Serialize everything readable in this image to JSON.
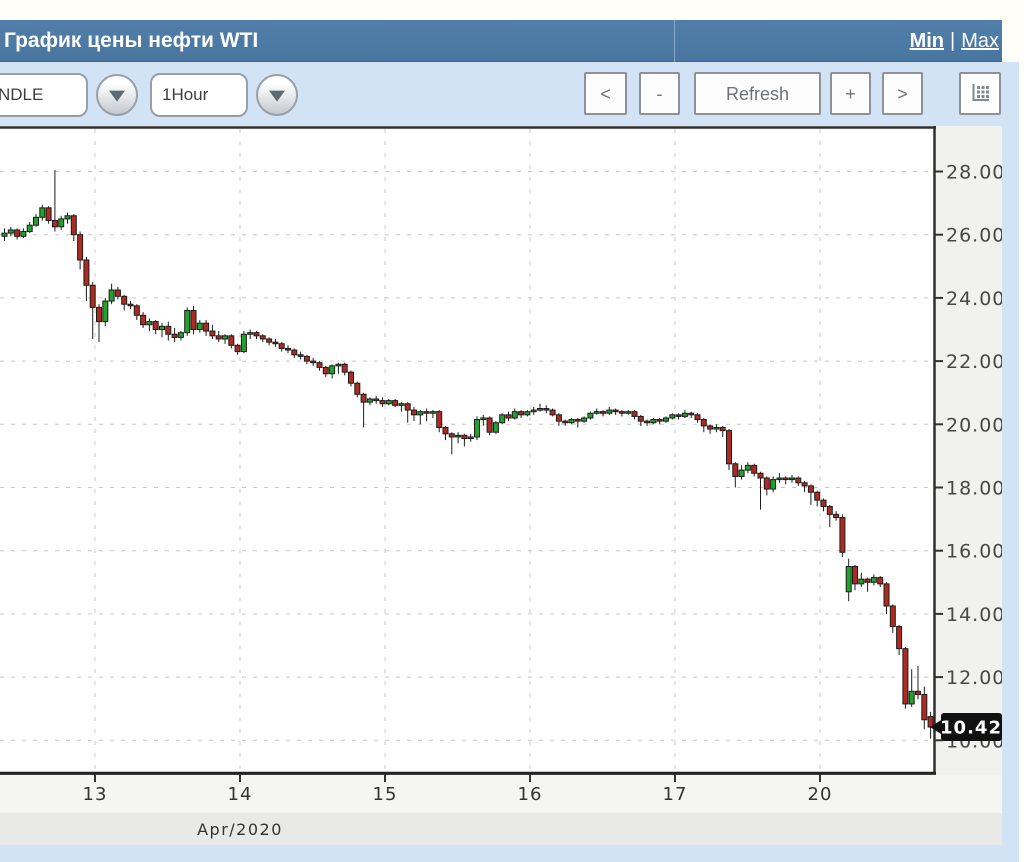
{
  "header": {
    "title": "График цены нефти WTI",
    "min_label": "Min",
    "separator": "|",
    "max_label": "Max"
  },
  "toolbar": {
    "chart_type_value": "NDLE",
    "interval_value": "1Hour",
    "prev_label": "<",
    "zoom_out_label": "-",
    "refresh_label": "Refresh",
    "zoom_in_label": "+",
    "next_label": ">",
    "table_icon": "data-table-icon"
  },
  "colors": {
    "up_candle": "#1fa32b",
    "down_candle": "#ad2b21",
    "candle_outline": "#1c1c1c",
    "grid": "#c7c7c7",
    "axis": "#333333",
    "tick_text": "#474747",
    "tag_bg": "#111111",
    "tag_text": "#ffffff",
    "header_bg": "#4a78a5",
    "panel_bg": "#d3e3f6"
  },
  "chart_data": {
    "type": "candlestick",
    "title": "График цены нефти WTI",
    "interval": "1Hour",
    "grid": true,
    "legend": false,
    "y_axis_side": "right",
    "ylim": [
      8.95,
      29.4
    ],
    "y_ticks": [
      {
        "value": 28,
        "label": "28.00"
      },
      {
        "value": 26,
        "label": "26.00"
      },
      {
        "value": 24,
        "label": "24.00"
      },
      {
        "value": 22,
        "label": "22.00"
      },
      {
        "value": 20,
        "label": "20.00"
      },
      {
        "value": 18,
        "label": "18.00"
      },
      {
        "value": 16,
        "label": "16.00"
      },
      {
        "value": 14,
        "label": "14.00"
      },
      {
        "value": 12,
        "label": "12.00"
      },
      {
        "value": 10,
        "label": "10.00"
      }
    ],
    "x_ticks": [
      "13",
      "14",
      "15",
      "16",
      "17",
      "20"
    ],
    "x_axis_label": "Apr/2020",
    "last_price": 10.42,
    "last_price_label": "10.42",
    "candles_format": [
      "open",
      "high",
      "low",
      "close"
    ],
    "candles": [
      [
        25.95,
        26.2,
        25.8,
        26.05
      ],
      [
        26.05,
        26.25,
        25.95,
        26.15
      ],
      [
        26.15,
        26.2,
        25.85,
        25.95
      ],
      [
        25.95,
        26.2,
        25.9,
        26.1
      ],
      [
        26.1,
        26.4,
        26.05,
        26.3
      ],
      [
        26.3,
        26.65,
        26.25,
        26.55
      ],
      [
        26.55,
        26.95,
        26.45,
        26.85
      ],
      [
        26.85,
        26.9,
        26.35,
        26.45
      ],
      [
        26.45,
        28.05,
        26.1,
        26.25
      ],
      [
        26.25,
        26.6,
        26.15,
        26.5
      ],
      [
        26.5,
        26.7,
        26.35,
        26.6
      ],
      [
        26.6,
        26.65,
        25.8,
        26.0
      ],
      [
        26.0,
        26.1,
        24.9,
        25.2
      ],
      [
        25.2,
        25.3,
        23.9,
        24.4
      ],
      [
        24.4,
        24.5,
        22.7,
        23.7
      ],
      [
        23.7,
        23.8,
        22.6,
        23.25
      ],
      [
        23.25,
        24.0,
        23.1,
        23.9
      ],
      [
        23.9,
        24.45,
        23.8,
        24.25
      ],
      [
        24.25,
        24.35,
        23.95,
        24.05
      ],
      [
        24.05,
        24.1,
        23.6,
        23.8
      ],
      [
        23.8,
        23.9,
        23.65,
        23.75
      ],
      [
        23.75,
        23.8,
        23.3,
        23.45
      ],
      [
        23.45,
        23.55,
        23.05,
        23.15
      ],
      [
        23.15,
        23.35,
        22.95,
        23.25
      ],
      [
        23.25,
        23.3,
        22.85,
        23.0
      ],
      [
        23.0,
        23.2,
        22.75,
        23.1
      ],
      [
        23.1,
        23.25,
        22.65,
        22.85
      ],
      [
        22.85,
        23.05,
        22.6,
        22.75
      ],
      [
        22.75,
        22.95,
        22.65,
        22.9
      ],
      [
        22.9,
        23.7,
        22.8,
        23.6
      ],
      [
        23.6,
        23.75,
        22.85,
        23.0
      ],
      [
        23.0,
        23.3,
        22.9,
        23.2
      ],
      [
        23.2,
        23.3,
        22.8,
        22.95
      ],
      [
        22.95,
        23.15,
        22.7,
        22.8
      ],
      [
        22.8,
        22.95,
        22.6,
        22.7
      ],
      [
        22.7,
        22.85,
        22.55,
        22.8
      ],
      [
        22.8,
        22.85,
        22.4,
        22.5
      ],
      [
        22.5,
        22.55,
        22.2,
        22.3
      ],
      [
        22.3,
        22.95,
        22.25,
        22.85
      ],
      [
        22.85,
        23.0,
        22.7,
        22.9
      ],
      [
        22.9,
        22.95,
        22.7,
        22.8
      ],
      [
        22.8,
        22.85,
        22.6,
        22.7
      ],
      [
        22.7,
        22.75,
        22.5,
        22.6
      ],
      [
        22.6,
        22.7,
        22.45,
        22.55
      ],
      [
        22.55,
        22.6,
        22.3,
        22.4
      ],
      [
        22.4,
        22.5,
        22.25,
        22.35
      ],
      [
        22.35,
        22.4,
        22.1,
        22.2
      ],
      [
        22.2,
        22.3,
        22.05,
        22.15
      ],
      [
        22.15,
        22.2,
        21.9,
        22.0
      ],
      [
        22.0,
        22.1,
        21.85,
        21.95
      ],
      [
        21.95,
        22.0,
        21.7,
        21.8
      ],
      [
        21.8,
        21.85,
        21.5,
        21.6
      ],
      [
        21.6,
        21.9,
        21.45,
        21.85
      ],
      [
        21.85,
        21.95,
        21.6,
        21.9
      ],
      [
        21.9,
        21.95,
        21.55,
        21.65
      ],
      [
        21.65,
        21.7,
        21.2,
        21.3
      ],
      [
        21.3,
        21.35,
        20.85,
        20.95
      ],
      [
        20.95,
        21.0,
        19.9,
        20.7
      ],
      [
        20.7,
        20.85,
        20.6,
        20.8
      ],
      [
        20.8,
        20.9,
        20.65,
        20.75
      ],
      [
        20.75,
        20.85,
        20.55,
        20.65
      ],
      [
        20.65,
        20.8,
        20.6,
        20.75
      ],
      [
        20.75,
        20.8,
        20.55,
        20.6
      ],
      [
        20.6,
        20.7,
        20.4,
        20.65
      ],
      [
        20.65,
        20.7,
        20.05,
        20.45
      ],
      [
        20.45,
        20.55,
        20.1,
        20.3
      ],
      [
        20.3,
        20.45,
        20.0,
        20.4
      ],
      [
        20.4,
        20.5,
        20.1,
        20.35
      ],
      [
        20.35,
        20.45,
        20.2,
        20.4
      ],
      [
        20.4,
        20.45,
        19.75,
        19.9
      ],
      [
        19.9,
        19.95,
        19.5,
        19.7
      ],
      [
        19.7,
        19.75,
        19.05,
        19.6
      ],
      [
        19.6,
        19.75,
        19.4,
        19.65
      ],
      [
        19.65,
        19.7,
        19.3,
        19.55
      ],
      [
        19.55,
        19.7,
        19.45,
        19.6
      ],
      [
        19.6,
        20.25,
        19.5,
        20.15
      ],
      [
        20.15,
        20.3,
        19.95,
        20.2
      ],
      [
        20.2,
        20.25,
        19.65,
        19.75
      ],
      [
        19.75,
        20.1,
        19.7,
        20.05
      ],
      [
        20.05,
        20.35,
        20.0,
        20.3
      ],
      [
        20.3,
        20.4,
        20.1,
        20.2
      ],
      [
        20.2,
        20.5,
        20.15,
        20.4
      ],
      [
        20.4,
        20.45,
        20.2,
        20.3
      ],
      [
        20.3,
        20.45,
        20.25,
        20.4
      ],
      [
        20.4,
        20.55,
        20.3,
        20.45
      ],
      [
        20.45,
        20.65,
        20.4,
        20.5
      ],
      [
        20.5,
        20.6,
        20.35,
        20.45
      ],
      [
        20.45,
        20.5,
        20.25,
        20.3
      ],
      [
        20.3,
        20.35,
        19.95,
        20.1
      ],
      [
        20.1,
        20.15,
        19.95,
        20.05
      ],
      [
        20.05,
        20.2,
        20.0,
        20.15
      ],
      [
        20.15,
        20.2,
        19.9,
        20.1
      ],
      [
        20.1,
        20.25,
        20.05,
        20.2
      ],
      [
        20.2,
        20.4,
        20.15,
        20.35
      ],
      [
        20.35,
        20.5,
        20.3,
        20.4
      ],
      [
        20.4,
        20.45,
        20.25,
        20.35
      ],
      [
        20.35,
        20.55,
        20.3,
        20.45
      ],
      [
        20.45,
        20.5,
        20.3,
        20.4
      ],
      [
        20.4,
        20.45,
        20.25,
        20.35
      ],
      [
        20.35,
        20.45,
        20.3,
        20.4
      ],
      [
        20.4,
        20.45,
        20.15,
        20.25
      ],
      [
        20.25,
        20.3,
        19.95,
        20.1
      ],
      [
        20.1,
        20.15,
        19.95,
        20.05
      ],
      [
        20.05,
        20.2,
        20.0,
        20.15
      ],
      [
        20.15,
        20.2,
        20.0,
        20.1
      ],
      [
        20.1,
        20.25,
        20.05,
        20.2
      ],
      [
        20.2,
        20.35,
        20.15,
        20.3
      ],
      [
        20.3,
        20.35,
        20.15,
        20.25
      ],
      [
        20.25,
        20.45,
        20.2,
        20.35
      ],
      [
        20.35,
        20.4,
        20.2,
        20.3
      ],
      [
        20.3,
        20.35,
        20.05,
        20.15
      ],
      [
        20.15,
        20.2,
        19.75,
        19.95
      ],
      [
        19.95,
        20.0,
        19.7,
        19.85
      ],
      [
        19.85,
        20.0,
        19.75,
        19.9
      ],
      [
        19.9,
        19.95,
        19.6,
        19.8
      ],
      [
        19.8,
        19.85,
        18.55,
        18.75
      ],
      [
        18.75,
        18.8,
        18.0,
        18.35
      ],
      [
        18.35,
        18.7,
        18.25,
        18.55
      ],
      [
        18.55,
        18.8,
        18.45,
        18.7
      ],
      [
        18.7,
        18.75,
        18.35,
        18.45
      ],
      [
        18.45,
        18.5,
        17.3,
        18.3
      ],
      [
        18.3,
        18.35,
        17.75,
        17.95
      ],
      [
        17.95,
        18.35,
        17.85,
        18.25
      ],
      [
        18.25,
        18.45,
        18.15,
        18.3
      ],
      [
        18.3,
        18.35,
        18.1,
        18.25
      ],
      [
        18.25,
        18.4,
        18.15,
        18.3
      ],
      [
        18.3,
        18.35,
        18.05,
        18.15
      ],
      [
        18.15,
        18.2,
        17.85,
        18.05
      ],
      [
        18.05,
        18.1,
        17.45,
        17.85
      ],
      [
        17.85,
        17.9,
        17.4,
        17.6
      ],
      [
        17.6,
        17.65,
        17.25,
        17.4
      ],
      [
        17.4,
        17.45,
        16.75,
        17.15
      ],
      [
        17.15,
        17.25,
        16.95,
        17.05
      ],
      [
        17.05,
        17.15,
        15.8,
        15.95
      ],
      [
        14.7,
        15.75,
        14.4,
        15.5
      ],
      [
        15.5,
        15.55,
        14.75,
        14.95
      ],
      [
        14.95,
        15.3,
        14.85,
        15.1
      ],
      [
        15.1,
        15.15,
        14.7,
        15.0
      ],
      [
        15.0,
        15.25,
        14.9,
        15.15
      ],
      [
        15.15,
        15.2,
        14.85,
        14.95
      ],
      [
        14.95,
        15.0,
        14.0,
        14.25
      ],
      [
        14.25,
        14.3,
        13.4,
        13.6
      ],
      [
        13.6,
        13.65,
        12.7,
        12.9
      ],
      [
        12.9,
        12.95,
        11.0,
        11.15
      ],
      [
        11.15,
        12.25,
        11.05,
        11.55
      ],
      [
        11.55,
        12.35,
        11.3,
        11.45
      ],
      [
        11.45,
        11.7,
        10.35,
        10.65
      ],
      [
        10.75,
        10.9,
        10.05,
        10.42
      ]
    ]
  }
}
